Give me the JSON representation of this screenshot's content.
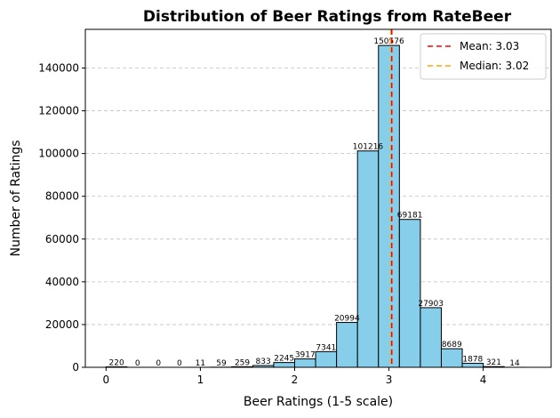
{
  "chart_data": {
    "type": "bar",
    "title": "Distribution of Beer Ratings from RateBeer",
    "xlabel": "Beer Ratings (1-5 scale)",
    "ylabel": "Number of Ratings",
    "bin_width": 0.2222,
    "bin_starts": [
      0.0,
      0.2222,
      0.4444,
      0.6667,
      0.8889,
      1.1111,
      1.3333,
      1.5556,
      1.7778,
      2.0,
      2.2222,
      2.4444,
      2.6667,
      2.8889,
      3.1111,
      3.3333,
      3.5556,
      3.7778,
      4.0,
      4.2222
    ],
    "values": [
      220,
      0,
      0,
      0,
      11,
      59,
      259,
      833,
      2245,
      3917,
      7341,
      20994,
      101216,
      150576,
      69181,
      27903,
      8689,
      1878,
      321,
      14
    ],
    "xlim": [
      -0.22,
      4.72
    ],
    "ylim": [
      0,
      158105
    ],
    "x_ticks": [
      0,
      1,
      2,
      3,
      4
    ],
    "y_ticks": [
      0,
      20000,
      40000,
      60000,
      80000,
      100000,
      120000,
      140000
    ],
    "grid": "y",
    "mean": 3.03,
    "median": 3.02,
    "legend": [
      {
        "label": "Mean: 3.03",
        "color": "#ff0000",
        "style": "dashed"
      },
      {
        "label": "Median: 3.02",
        "color": "#ffa500",
        "style": "dashed"
      }
    ],
    "legend_position": "top-right",
    "bar_color": "#87ceeb",
    "edge_color": "#000000"
  }
}
